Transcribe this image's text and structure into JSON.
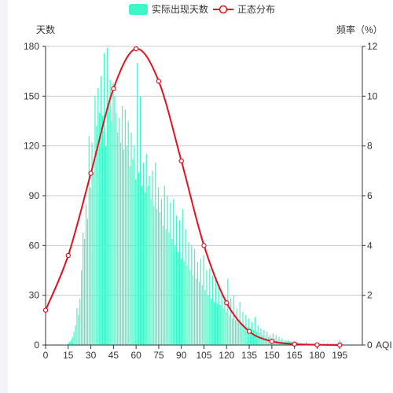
{
  "chart_data": {
    "type": "bar",
    "legend": [
      {
        "name": "实际出现天数",
        "color": "#3ef5c5",
        "kind": "bar"
      },
      {
        "name": "正态分布",
        "color": "#e0121f",
        "kind": "line"
      }
    ],
    "left_axis": {
      "name": "天数",
      "ylim": [
        0,
        180
      ],
      "ticks": [
        0,
        30,
        60,
        90,
        120,
        150,
        180
      ]
    },
    "right_axis": {
      "name": "频率（%）",
      "ylim": [
        0,
        12
      ],
      "ticks": [
        0,
        2,
        4,
        6,
        8,
        10,
        12
      ]
    },
    "x_axis": {
      "name": "AQI",
      "xlim": [
        0,
        210
      ],
      "ticks": [
        0,
        15,
        30,
        45,
        60,
        75,
        90,
        105,
        120,
        135,
        150,
        165,
        180,
        195
      ]
    },
    "grid": true,
    "legend_position": "top-center",
    "series": [
      {
        "name": "实际出现天数",
        "type": "bar",
        "x_start": 15,
        "x_step": 1,
        "values": [
          1,
          2,
          3,
          5,
          8,
          12,
          22,
          18,
          28,
          45,
          68,
          64,
          85,
          76,
          126,
          95,
          122,
          104,
          150,
          132,
          155,
          140,
          162,
          138,
          176,
          120,
          179,
          145,
          160,
          135,
          158,
          150,
          140,
          128,
          137,
          122,
          144,
          118,
          142,
          120,
          135,
          108,
          128,
          112,
          120,
          100,
          170,
          104,
          150,
          96,
          110,
          92,
          115,
          96,
          102,
          88,
          105,
          84,
          110,
          82,
          95,
          80,
          88,
          72,
          96,
          70,
          90,
          68,
          86,
          64,
          88,
          60,
          78,
          56,
          75,
          52,
          82,
          50,
          70,
          48,
          62,
          45,
          60,
          42,
          58,
          40,
          50,
          38,
          52,
          36,
          54,
          33,
          45,
          30,
          46,
          28,
          42,
          26,
          40,
          25,
          36,
          24,
          32,
          22,
          29,
          20,
          40,
          18,
          28,
          16,
          30,
          15,
          22,
          14,
          26,
          13,
          20,
          12,
          18,
          11,
          16,
          10,
          14,
          9,
          17,
          8,
          12,
          7,
          10,
          6,
          9,
          5,
          8,
          5,
          6,
          4,
          7,
          4,
          6,
          3,
          5,
          3,
          4,
          2,
          3,
          2,
          3,
          2,
          2,
          1,
          2,
          1,
          2,
          1,
          1,
          1,
          1,
          1,
          2,
          1,
          1,
          0,
          1,
          0,
          1,
          0,
          1,
          0,
          1,
          0,
          1,
          0,
          1,
          0,
          1,
          0,
          1,
          0,
          1,
          0,
          3,
          2,
          1,
          0
        ]
      },
      {
        "name": "正态分布",
        "type": "line",
        "smooth": true,
        "points": [
          [
            0,
            1.4
          ],
          [
            15,
            3.6
          ],
          [
            30,
            6.9
          ],
          [
            45,
            10.3
          ],
          [
            60,
            11.9
          ],
          [
            75,
            10.6
          ],
          [
            90,
            7.4
          ],
          [
            105,
            4.0
          ],
          [
            120,
            1.7
          ],
          [
            135,
            0.55
          ],
          [
            150,
            0.15
          ],
          [
            165,
            0.04
          ],
          [
            180,
            0.01
          ],
          [
            195,
            0.0
          ]
        ]
      }
    ]
  }
}
